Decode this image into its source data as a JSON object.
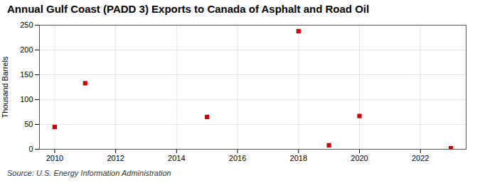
{
  "chart_data": {
    "type": "scatter",
    "title": "Annual Gulf Coast (PADD 3) Exports to Canada of Asphalt and Road Oil",
    "ylabel": "Thousand Barrels",
    "annotation": "Source: U.S. Energy Information Administration",
    "x": [
      2010,
      2011,
      2015,
      2018,
      2019,
      2020,
      2023
    ],
    "values": [
      45,
      133,
      65,
      238,
      8,
      67,
      2
    ],
    "color": "#cc0000",
    "marker": "square",
    "xlim": [
      2009.5,
      2023.5
    ],
    "ylim": [
      0,
      250
    ],
    "xticks": [
      2010,
      2012,
      2014,
      2016,
      2018,
      2020,
      2022
    ],
    "yticks": [
      0,
      50,
      100,
      150,
      200,
      250
    ],
    "grid": true
  }
}
